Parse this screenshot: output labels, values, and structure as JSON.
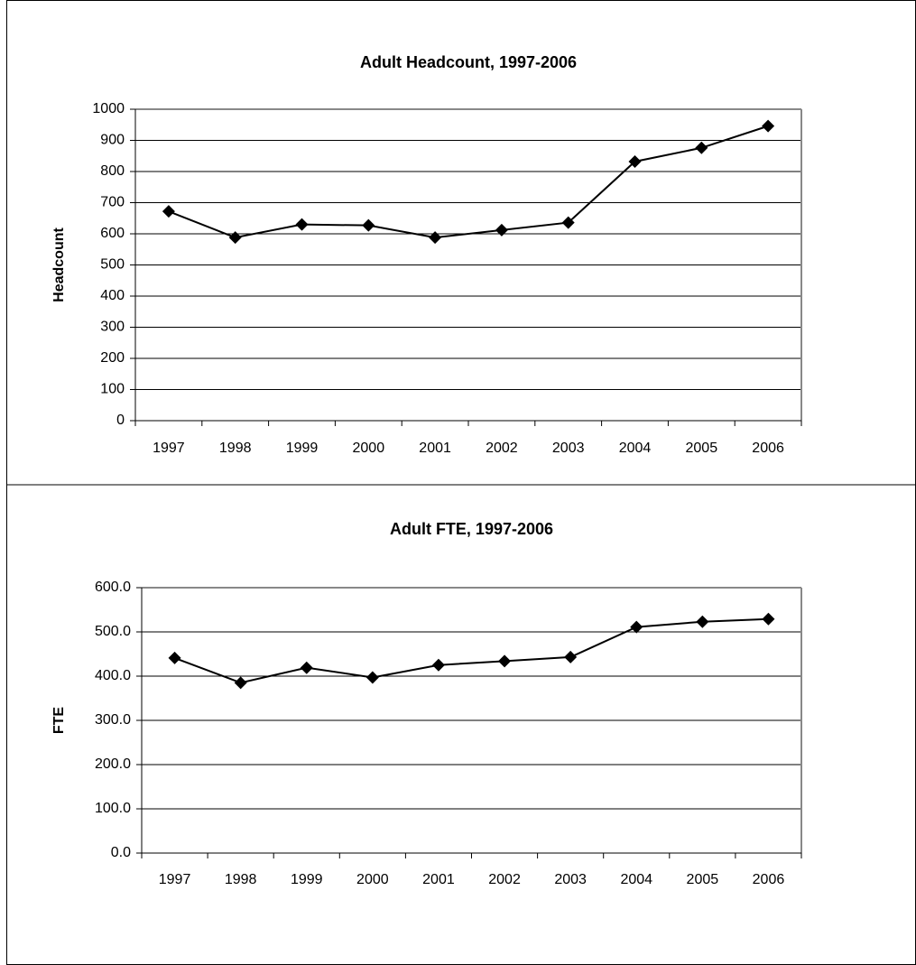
{
  "chart_data": [
    {
      "type": "line",
      "title": "Adult Headcount, 1997-2006",
      "y_label": "Headcount",
      "categories": [
        "1997",
        "1998",
        "1999",
        "2000",
        "2001",
        "2002",
        "2003",
        "2004",
        "2005",
        "2006"
      ],
      "series": [
        {
          "name": "Headcount",
          "color": "#000000",
          "values": [
            672,
            588,
            630,
            627,
            588,
            612,
            636,
            832,
            876,
            946
          ]
        }
      ],
      "ylim": [
        0,
        1000
      ],
      "yticks": [
        0,
        100,
        200,
        300,
        400,
        500,
        600,
        700,
        800,
        900,
        1000
      ],
      "grid": true
    },
    {
      "type": "line",
      "title": "Adult FTE, 1997-2006",
      "y_label": "FTE",
      "categories": [
        "1997",
        "1998",
        "1999",
        "2000",
        "2001",
        "2002",
        "2003",
        "2004",
        "2005",
        "2006"
      ],
      "series": [
        {
          "name": "FTE",
          "color": "#000000",
          "values": [
            441,
            385,
            419,
            397,
            425,
            434,
            443,
            511,
            523,
            529
          ]
        }
      ],
      "ylim": [
        0,
        600
      ],
      "yticks": [
        {
          "value": 0,
          "label": "0.0"
        },
        {
          "value": 100,
          "label": "100.0"
        },
        {
          "value": 200,
          "label": "200.0"
        },
        {
          "value": 300,
          "label": "300.0"
        },
        {
          "value": 400,
          "label": "400.0"
        },
        {
          "value": 500,
          "label": "500.0"
        },
        {
          "value": 600,
          "label": "600.0"
        }
      ],
      "grid": true
    }
  ]
}
